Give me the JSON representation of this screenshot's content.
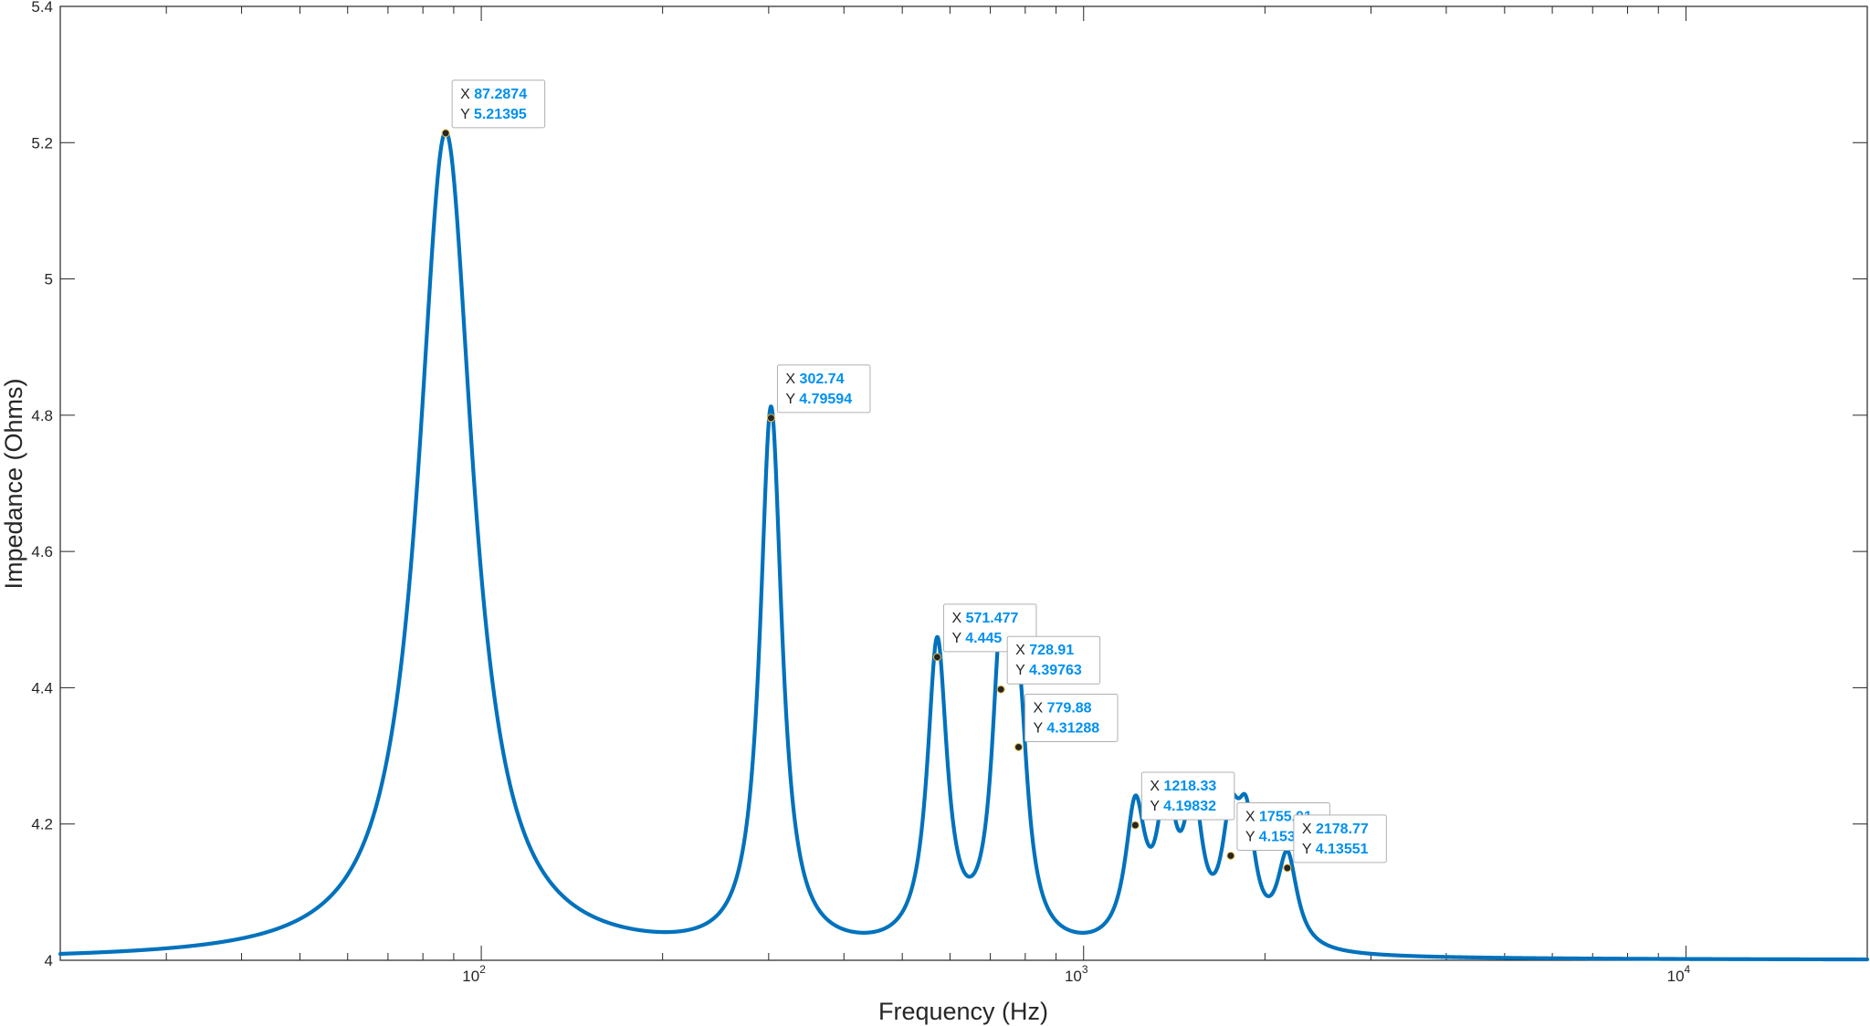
{
  "chart_data": {
    "type": "line",
    "xscale": "log",
    "xlabel": "Frequency (Hz)",
    "ylabel": "Impedance (Ohms)",
    "xlim": [
      20,
      20000
    ],
    "ylim": [
      4,
      5.4
    ],
    "x_ticks": [
      {
        "value": 100,
        "base": "10",
        "exp": "2"
      },
      {
        "value": 1000,
        "base": "10",
        "exp": "3"
      },
      {
        "value": 10000,
        "base": "10",
        "exp": "4"
      }
    ],
    "y_ticks": [
      "4",
      "4.2",
      "4.4",
      "4.6",
      "4.8",
      "5",
      "5.2",
      "5.4"
    ],
    "baseline": 4,
    "line_color": "#0072bd",
    "series": [
      {
        "peaks": [
          {
            "x": 87.2874,
            "y": 5.21395
          },
          {
            "x": 302.74,
            "y": 4.79594
          },
          {
            "x": 571.477,
            "y": 4.44533
          },
          {
            "x": 728.91,
            "y": 4.39763
          },
          {
            "x": 779.88,
            "y": 4.31288
          },
          {
            "x": 1218.33,
            "y": 4.19832
          },
          {
            "x": 1372.5,
            "y": 4.2
          },
          {
            "x": 1520.8,
            "y": 4.196
          },
          {
            "x": 1755.01,
            "y": 4.15347
          },
          {
            "x": 1862.4,
            "y": 4.16
          },
          {
            "x": 2178.77,
            "y": 4.13551
          }
        ]
      }
    ],
    "datatips": [
      {
        "x": "87.2874",
        "y": "5.21395"
      },
      {
        "x": "302.74",
        "y": "4.79594"
      },
      {
        "x": "571.477",
        "y": "4.445"
      },
      {
        "x": "728.91",
        "y": "4.39763"
      },
      {
        "x": "779.88",
        "y": "4.31288"
      },
      {
        "x": "1218.33",
        "y": "4.19832"
      },
      {
        "x": "1755.01",
        "y": "4.15347"
      },
      {
        "x": "2178.77",
        "y": "4.13551"
      }
    ],
    "datatip_prefix_x": "X",
    "datatip_prefix_y": "Y",
    "grid": false
  }
}
